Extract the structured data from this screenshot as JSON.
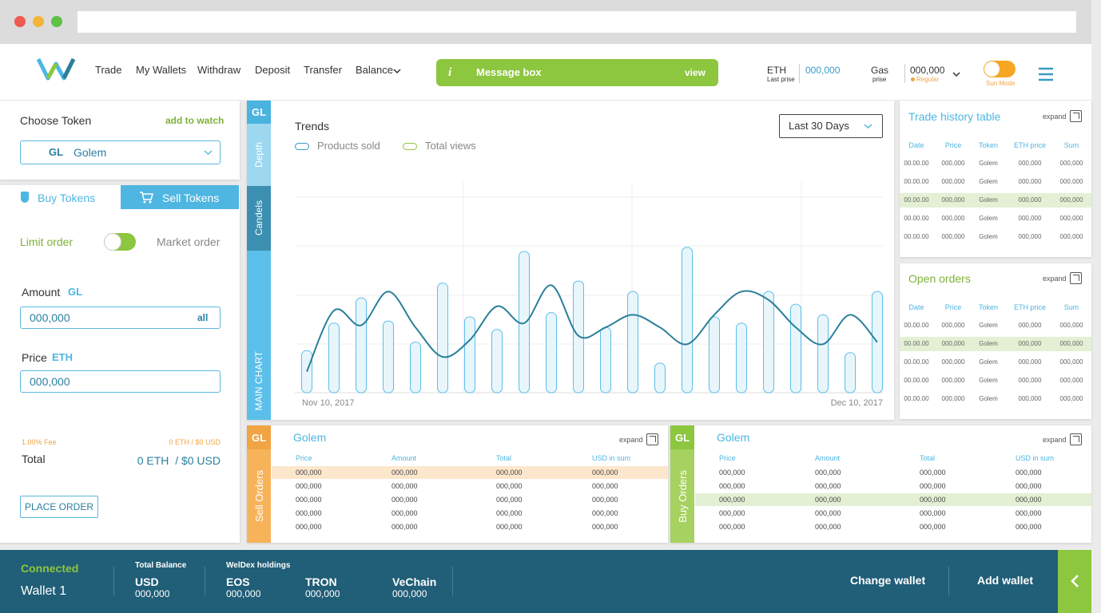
{
  "header": {
    "nav": [
      "Trade",
      "My Wallets",
      "Withdraw",
      "Deposit",
      "Transfer",
      "Balance"
    ],
    "message_box": {
      "icon": "i",
      "text": "Message box",
      "action": "view"
    },
    "eth": {
      "label": "ETH",
      "sublabel": "Last prise",
      "value": "000,000"
    },
    "gas": {
      "label": "Gas",
      "sublabel": "prise",
      "value": "000,000",
      "status": "Regular"
    },
    "mode": "Sun Mode"
  },
  "token_panel": {
    "title": "Choose Token",
    "watch": "add to watch",
    "symbol": "GL",
    "name": "Golem"
  },
  "order_panel": {
    "tabs": [
      "Buy Tokens",
      "Sell Tokens"
    ],
    "limit": "Limit order",
    "market": "Market order",
    "amount": {
      "label": "Amount",
      "unit": "GL",
      "value": "000,000",
      "action": "all"
    },
    "price": {
      "label": "Price",
      "unit": "ETH",
      "value": "000,000"
    },
    "fee": {
      "label": "1.00% Fee",
      "value": "0 ETH  / $0 USD"
    },
    "total": {
      "label": "Total",
      "value": "0 ETH  / $0 USD"
    },
    "button": "PLACE ORDER"
  },
  "chart": {
    "type": "bar",
    "tabs": [
      "GL",
      "Depth",
      "Candels",
      "MAIN CHART"
    ],
    "title": "Trends",
    "period": "Last 30 Days",
    "x_start": "Nov 10, 2017",
    "x_end": "Dec 10, 2017",
    "series": [
      {
        "name": "Products sold",
        "color": "#5bbfea",
        "values": [
          20,
          33,
          45,
          34,
          24,
          52,
          36,
          30,
          67,
          38,
          53,
          31,
          48,
          14,
          69,
          36,
          33,
          48,
          42,
          37,
          19,
          48
        ]
      },
      {
        "name": "Total views",
        "type": "line",
        "color": "#2a7f99",
        "values": [
          10,
          39,
          32,
          48,
          31,
          17,
          25,
          41,
          33,
          51,
          27,
          31,
          37,
          31,
          23,
          37,
          48,
          44,
          31,
          23,
          37,
          24
        ]
      }
    ]
  },
  "trade_history": {
    "title": "Trade history table",
    "expand": "expand",
    "highlight": 2,
    "columns": [
      "Date",
      "Price",
      "Token",
      "ETH price",
      "Sum"
    ],
    "rows": [
      [
        "00.00.00",
        "000,000",
        "Golem",
        "000,000",
        "000,000"
      ],
      [
        "00.00.00",
        "000,000",
        "Golem",
        "000,000",
        "000,000"
      ],
      [
        "00.00.00",
        "000,000",
        "Golem",
        "000,000",
        "000,000"
      ],
      [
        "00.00.00",
        "000,000",
        "Golem",
        "000,000",
        "000,000"
      ],
      [
        "00.00.00",
        "000,000",
        "Golem",
        "000,000",
        "000,000"
      ]
    ]
  },
  "open_orders": {
    "title": "Open orders",
    "expand": "expand",
    "highlight": 1,
    "columns": [
      "Date",
      "Price",
      "Token",
      "ETH price",
      "Sum"
    ],
    "rows": [
      [
        "00.00.00",
        "000,000",
        "Golem",
        "000,000",
        "000,000"
      ],
      [
        "00.00.00",
        "000,000",
        "Golem",
        "000,000",
        "000,000"
      ],
      [
        "00.00.00",
        "000,000",
        "Golem",
        "000,000",
        "000,000"
      ],
      [
        "00.00.00",
        "000,000",
        "Golem",
        "000,000",
        "000,000"
      ],
      [
        "00.00.00",
        "000,000",
        "Golem",
        "000,000",
        "000,000"
      ]
    ]
  },
  "sell_orders": {
    "tag": "GL",
    "side": "Sell Orders",
    "title": "Golem",
    "expand": "expand",
    "highlight": 0,
    "columns": [
      "Price",
      "Amount",
      "Total",
      "USD in sum"
    ],
    "rows": [
      [
        "000,000",
        "000,000",
        "000,000",
        "000,000"
      ],
      [
        "000,000",
        "000,000",
        "000,000",
        "000,000"
      ],
      [
        "000,000",
        "000,000",
        "000,000",
        "000,000"
      ],
      [
        "000,000",
        "000,000",
        "000,000",
        "000,000"
      ],
      [
        "000,000",
        "000,000",
        "000,000",
        "000,000"
      ]
    ]
  },
  "buy_orders": {
    "tag": "GL",
    "side": "Buy Orders",
    "title": "Golem",
    "expand": "expand",
    "highlight": 2,
    "columns": [
      "Price",
      "Amount",
      "Total",
      "USD in sum"
    ],
    "rows": [
      [
        "000,000",
        "000,000",
        "000,000",
        "000,000"
      ],
      [
        "000,000",
        "000,000",
        "000,000",
        "000,000"
      ],
      [
        "000,000",
        "000,000",
        "000,000",
        "000,000"
      ],
      [
        "000,000",
        "000,000",
        "000,000",
        "000,000"
      ],
      [
        "000,000",
        "000,000",
        "000,000",
        "000,000"
      ]
    ]
  },
  "footer": {
    "status": "Connected",
    "wallet": "Wallet 1",
    "balance": {
      "label": "Total Balance",
      "currency": "USD",
      "value": "000,000"
    },
    "holdings": {
      "label": "WelDex holdings",
      "items": [
        {
          "name": "EOS",
          "value": "000,000"
        },
        {
          "name": "TRON",
          "value": "000,000"
        },
        {
          "name": "VeChain",
          "value": "000,000"
        }
      ]
    },
    "actions": [
      "Change wallet",
      "Add wallet"
    ]
  }
}
